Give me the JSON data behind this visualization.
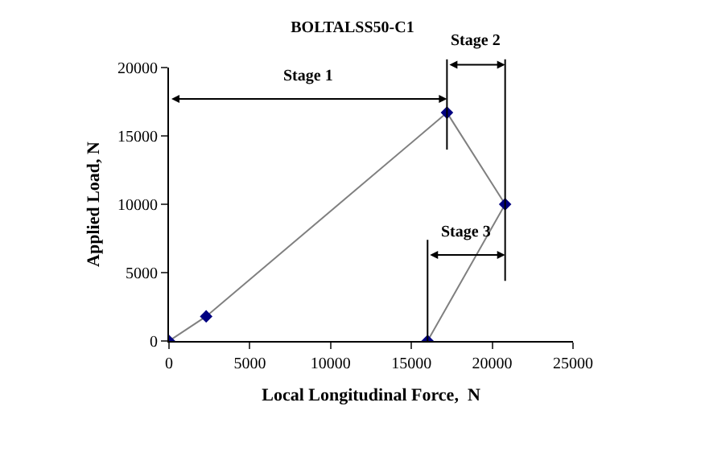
{
  "chart_data": {
    "type": "line",
    "title": "BOLTALSS50-C1",
    "xlabel": "Local Longitudinal Force,  N",
    "ylabel": "Applied Load, N",
    "x": [
      0,
      2300,
      17200,
      20800,
      16000
    ],
    "series": [
      {
        "color": "#000080",
        "values": [
          0,
          1800,
          16700,
          10000,
          0
        ]
      }
    ],
    "xlim": [
      0,
      25000
    ],
    "xticks": [
      0,
      5000,
      10000,
      15000,
      20000,
      25000
    ],
    "ylim": [
      0,
      20000
    ],
    "yticks": [
      0,
      5000,
      10000,
      15000,
      20000
    ],
    "ref_lines": [
      {
        "axis": "x",
        "value": 17200,
        "color": "#000000"
      },
      {
        "axis": "x",
        "value": 20800,
        "color": "#000000"
      },
      {
        "axis": "x",
        "value": 16000,
        "color": "#000000"
      }
    ],
    "annotations": [
      "Stage 1",
      "Stage 2",
      "Stage 3"
    ],
    "marker": "diamond"
  }
}
